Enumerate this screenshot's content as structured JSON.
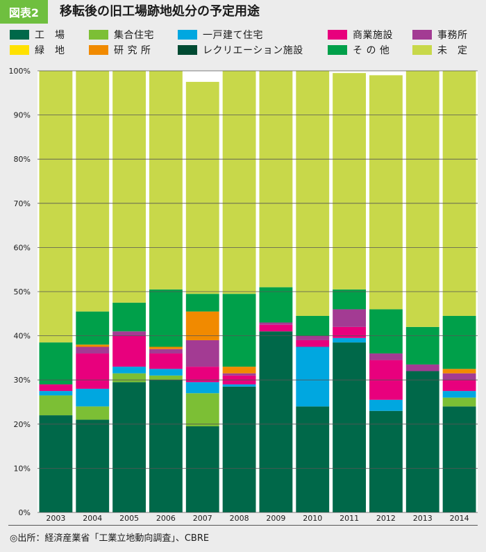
{
  "header": {
    "figure_tag": "図表2",
    "title": "移転後の旧工場跡地処分の予定用途"
  },
  "legend": [
    {
      "key": "factory",
      "label": "工　場",
      "color": "#006849"
    },
    {
      "key": "apartment",
      "label": "集合住宅",
      "color": "#7cbf35"
    },
    {
      "key": "house",
      "label": "一戸建て住宅",
      "color": "#00a7e0"
    },
    {
      "key": "commercial",
      "label": "商業施設",
      "color": "#e8007d"
    },
    {
      "key": "office",
      "label": "事務所",
      "color": "#a33b93"
    },
    {
      "key": "green",
      "label": "緑　地",
      "color": "#ffe100"
    },
    {
      "key": "research",
      "label": "研 究 所",
      "color": "#f18a00"
    },
    {
      "key": "recreation",
      "label": "レクリエーション施設",
      "color": "#004a32"
    },
    {
      "key": "other",
      "label": "そ の 他",
      "color": "#00a04a"
    },
    {
      "key": "undecided",
      "label": "未　定",
      "color": "#c8d84a"
    }
  ],
  "chart_data": {
    "type": "bar",
    "stacked": true,
    "categories": [
      "2003",
      "2004",
      "2005",
      "2006",
      "2007",
      "2008",
      "2009",
      "2010",
      "2011",
      "2012",
      "2013",
      "2014"
    ],
    "y_ticks": [
      "0%",
      "10%",
      "20%",
      "30%",
      "40%",
      "50%",
      "60%",
      "70%",
      "80%",
      "90%",
      "100%"
    ],
    "ylim": [
      0,
      100
    ],
    "grid": true,
    "series": [
      {
        "key": "factory",
        "name": "工　場",
        "color": "#006849",
        "values": [
          22,
          21,
          29.5,
          30,
          19.5,
          28.5,
          41,
          24,
          38.5,
          23,
          32,
          24
        ]
      },
      {
        "key": "apartment",
        "name": "集合住宅",
        "color": "#7cbf35",
        "values": [
          4.5,
          3,
          2,
          1,
          7.5,
          0,
          0,
          0,
          0,
          0,
          0,
          2
        ]
      },
      {
        "key": "house",
        "name": "一戸建て住宅",
        "color": "#00a7e0",
        "values": [
          1,
          4,
          1.5,
          1.5,
          2.5,
          0.5,
          0,
          13.5,
          1,
          2.5,
          0,
          1.5
        ]
      },
      {
        "key": "commercial",
        "name": "商業施設",
        "color": "#e8007d",
        "values": [
          1.5,
          8,
          7,
          3.5,
          3.5,
          2,
          1.5,
          1.5,
          2.5,
          9,
          0,
          2.5
        ]
      },
      {
        "key": "office",
        "name": "事務所",
        "color": "#a33b93",
        "values": [
          0,
          1.5,
          1,
          1,
          6,
          0.5,
          0.5,
          1,
          4,
          1.5,
          1.5,
          1.5
        ]
      },
      {
        "key": "green",
        "name": "緑　地",
        "color": "#ffe100",
        "values": [
          0,
          0,
          0,
          0,
          0,
          0,
          0,
          0,
          0,
          0,
          0,
          0
        ]
      },
      {
        "key": "research",
        "name": "研 究 所",
        "color": "#f18a00",
        "values": [
          0,
          0.5,
          0,
          0.5,
          6.5,
          1.5,
          0,
          0,
          0,
          0,
          0,
          1
        ]
      },
      {
        "key": "recreation",
        "name": "レクリエーション施設",
        "color": "#004a32",
        "values": [
          0,
          0,
          0,
          0,
          0,
          0,
          0,
          0,
          0,
          0,
          0,
          0
        ]
      },
      {
        "key": "other",
        "name": "そ の 他",
        "color": "#00a04a",
        "values": [
          9.5,
          7.5,
          6.5,
          13,
          4,
          16.5,
          8,
          4.5,
          4.5,
          10,
          8.5,
          12
        ]
      },
      {
        "key": "undecided",
        "name": "未　定",
        "color": "#c8d84a",
        "values": [
          61.5,
          54.5,
          52.5,
          49.5,
          48,
          50.5,
          49,
          55.5,
          49,
          53,
          58,
          55.5
        ]
      }
    ]
  },
  "source": "◎出所：経済産業省「工業立地動向調査」、CBRE"
}
